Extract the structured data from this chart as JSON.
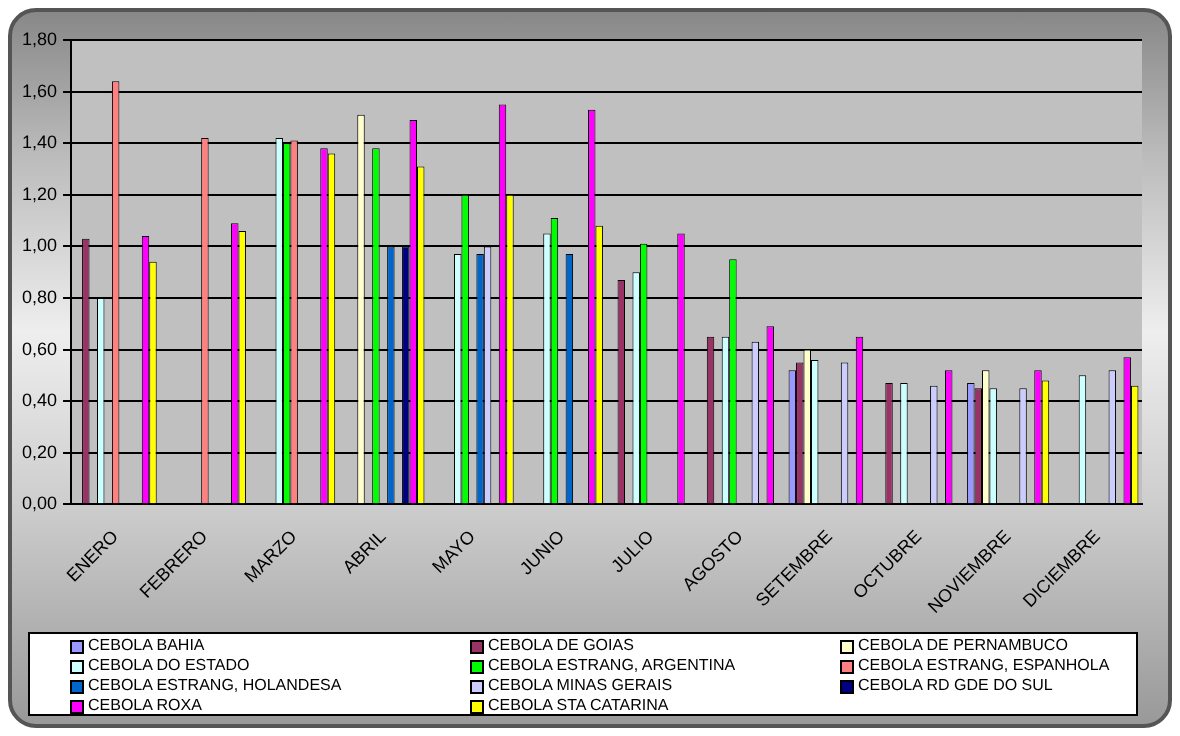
{
  "chart_data": {
    "type": "bar",
    "categories": [
      "ENERO",
      "FEBRERO",
      "MARZO",
      "ABRIL",
      "MAYO",
      "JUNIO",
      "JULIO",
      "AGOSTO",
      "SETEMBRE",
      "OCTUBRE",
      "NOVIEMBRE",
      "DICIEMBRE"
    ],
    "ylim": [
      0,
      1.8
    ],
    "yticks": [
      {
        "value": 0,
        "label": "0,00"
      },
      {
        "value": 0.2,
        "label": "0,20"
      },
      {
        "value": 0.4,
        "label": "0,40"
      },
      {
        "value": 0.6,
        "label": "0,60"
      },
      {
        "value": 0.8,
        "label": "0,80"
      },
      {
        "value": 1,
        "label": "1,00"
      },
      {
        "value": 1.2,
        "label": "1,20"
      },
      {
        "value": 1.4,
        "label": "1,40"
      },
      {
        "value": 1.6,
        "label": "1,60"
      },
      {
        "value": 1.8,
        "label": "1,80"
      }
    ],
    "grid": "y",
    "legend": "bottom",
    "series": [
      {
        "name": "CEBOLA BAHIA",
        "color": "#9999ff",
        "values": [
          null,
          null,
          null,
          null,
          null,
          null,
          null,
          null,
          0.52,
          null,
          0.47,
          null
        ]
      },
      {
        "name": "CEBOLA DE GOIAS",
        "color": "#993366",
        "values": [
          1.03,
          null,
          null,
          null,
          null,
          null,
          0.87,
          0.65,
          0.55,
          0.47,
          0.45,
          null
        ]
      },
      {
        "name": "CEBOLA DE PERNAMBUCO",
        "color": "#ffffcc",
        "values": [
          null,
          null,
          null,
          1.51,
          null,
          null,
          null,
          null,
          0.6,
          null,
          0.52,
          null
        ]
      },
      {
        "name": "CEBOLA DO ESTADO",
        "color": "#ccffff",
        "values": [
          0.8,
          null,
          1.42,
          null,
          0.97,
          1.05,
          0.9,
          0.65,
          0.56,
          0.47,
          0.45,
          0.5
        ]
      },
      {
        "name": "CEBOLA ESTRANG, ARGENTINA",
        "color": "#00ff00",
        "values": [
          null,
          null,
          1.4,
          1.38,
          1.2,
          1.11,
          1.01,
          0.95,
          null,
          null,
          null,
          null
        ]
      },
      {
        "name": "CEBOLA ESTRANG, ESPANHOLA",
        "color": "#ff8080",
        "values": [
          1.64,
          1.42,
          1.41,
          null,
          null,
          null,
          null,
          null,
          null,
          null,
          null,
          null
        ]
      },
      {
        "name": "CEBOLA ESTRANG, HOLANDESA",
        "color": "#0066cc",
        "values": [
          null,
          null,
          null,
          1.0,
          0.97,
          0.97,
          null,
          null,
          null,
          null,
          null,
          null
        ]
      },
      {
        "name": "CEBOLA MINAS GERAIS",
        "color": "#ccccff",
        "values": [
          null,
          null,
          null,
          null,
          1.0,
          null,
          null,
          0.63,
          0.55,
          0.46,
          0.45,
          0.52
        ]
      },
      {
        "name": "CEBOLA RD GDE DO SUL",
        "color": "#000080",
        "values": [
          null,
          null,
          null,
          1.0,
          null,
          null,
          null,
          null,
          null,
          null,
          null,
          null
        ]
      },
      {
        "name": "CEBOLA ROXA",
        "color": "#ff00ff",
        "values": [
          1.04,
          1.09,
          1.38,
          1.49,
          1.55,
          1.53,
          1.05,
          0.69,
          0.65,
          0.52,
          0.52,
          0.57
        ]
      },
      {
        "name": "CEBOLA STA CATARINA",
        "color": "#ffff00",
        "values": [
          0.94,
          1.06,
          1.36,
          1.31,
          1.2,
          1.08,
          null,
          null,
          null,
          null,
          0.48,
          0.46
        ]
      }
    ]
  }
}
